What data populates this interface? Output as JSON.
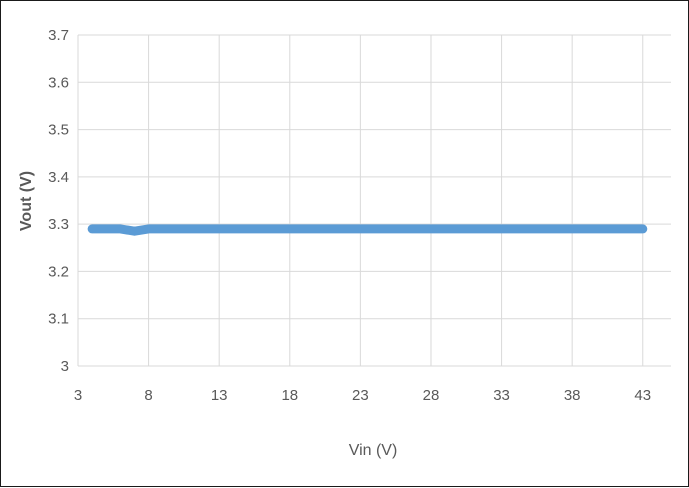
{
  "chart_data": {
    "type": "line",
    "xlabel": "Vin (V)",
    "ylabel": "Vout (V)",
    "xlim": [
      3,
      45
    ],
    "ylim": [
      3,
      3.7
    ],
    "xticks": [
      3,
      8,
      13,
      18,
      23,
      28,
      33,
      38,
      43
    ],
    "yticks": [
      3,
      3.1,
      3.2,
      3.3,
      3.4,
      3.5,
      3.6,
      3.7
    ],
    "grid": true,
    "legend": "none",
    "series": [
      {
        "color": "#5b9bd5",
        "x": [
          4,
          5,
          6,
          7,
          8,
          9,
          10,
          12,
          15,
          18,
          21,
          24,
          27,
          30,
          33,
          36,
          39,
          42,
          43
        ],
        "y": [
          3.29,
          3.29,
          3.29,
          3.285,
          3.29,
          3.29,
          3.29,
          3.29,
          3.29,
          3.29,
          3.29,
          3.29,
          3.29,
          3.29,
          3.29,
          3.29,
          3.29,
          3.29,
          3.29
        ]
      }
    ]
  }
}
